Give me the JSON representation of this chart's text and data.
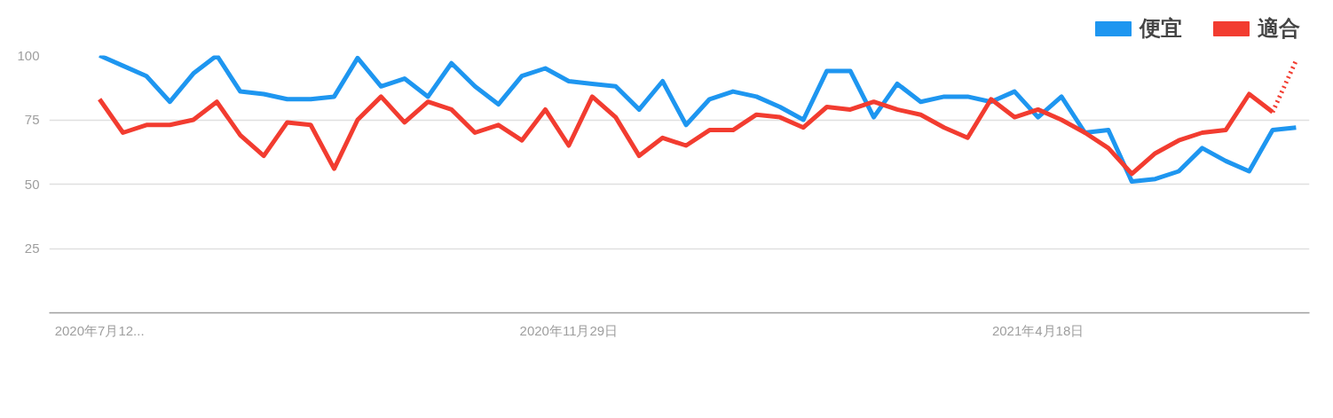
{
  "chart_data": {
    "type": "line",
    "x": [
      "2020-07-12",
      "2020-07-19",
      "2020-07-26",
      "2020-08-02",
      "2020-08-09",
      "2020-08-16",
      "2020-08-23",
      "2020-08-30",
      "2020-09-06",
      "2020-09-13",
      "2020-09-20",
      "2020-09-27",
      "2020-10-04",
      "2020-10-11",
      "2020-10-18",
      "2020-10-25",
      "2020-11-01",
      "2020-11-08",
      "2020-11-15",
      "2020-11-22",
      "2020-11-29",
      "2020-12-06",
      "2020-12-13",
      "2020-12-20",
      "2020-12-27",
      "2021-01-03",
      "2021-01-10",
      "2021-01-17",
      "2021-01-24",
      "2021-01-31",
      "2021-02-07",
      "2021-02-14",
      "2021-02-21",
      "2021-02-28",
      "2021-03-07",
      "2021-03-14",
      "2021-03-21",
      "2021-03-28",
      "2021-04-04",
      "2021-04-11",
      "2021-04-18",
      "2021-04-25",
      "2021-05-02",
      "2021-05-09",
      "2021-05-16",
      "2021-05-23",
      "2021-05-30",
      "2021-06-06",
      "2021-06-13",
      "2021-06-20",
      "2021-06-27",
      "2021-07-04"
    ],
    "series": [
      {
        "name": "便宜",
        "color": "#1e96f0",
        "values": [
          100,
          96,
          92,
          82,
          93,
          100,
          86,
          85,
          83,
          83,
          84,
          99,
          88,
          91,
          84,
          97,
          88,
          81,
          92,
          95,
          90,
          89,
          88,
          79,
          90,
          73,
          83,
          86,
          84,
          80,
          75,
          94,
          94,
          76,
          89,
          82,
          84,
          84,
          82,
          86,
          76,
          84,
          70,
          71,
          51,
          52,
          55,
          64,
          59,
          55,
          71,
          72
        ]
      },
      {
        "name": "適合",
        "color": "#f23c30",
        "values": [
          83,
          70,
          73,
          73,
          75,
          82,
          69,
          61,
          74,
          73,
          56,
          75,
          84,
          74,
          82,
          79,
          70,
          73,
          67,
          79,
          65,
          84,
          76,
          61,
          68,
          65,
          71,
          71,
          77,
          76,
          72,
          80,
          79,
          82,
          79,
          77,
          72,
          68,
          83,
          76,
          79,
          75,
          70,
          64,
          54,
          62,
          67,
          70,
          71,
          85,
          78,
          null
        ]
      },
      {
        "color": "#f23c30",
        "line_style": "dotted",
        "values": [
          null,
          null,
          null,
          null,
          null,
          null,
          null,
          null,
          null,
          null,
          null,
          null,
          null,
          null,
          null,
          null,
          null,
          null,
          null,
          null,
          null,
          null,
          null,
          null,
          null,
          null,
          null,
          null,
          null,
          null,
          null,
          null,
          null,
          null,
          null,
          null,
          null,
          null,
          null,
          null,
          null,
          null,
          null,
          null,
          null,
          null,
          null,
          null,
          null,
          null,
          78,
          98
        ]
      }
    ],
    "xlim": [
      "2020-06-27",
      "2021-07-08"
    ],
    "xticks": [
      {
        "value": "2020-07-12",
        "label": "2020年7月12..."
      },
      {
        "value": "2020-11-29",
        "label": "2020年11月29日"
      },
      {
        "value": "2021-04-18",
        "label": "2021年4月18日"
      }
    ],
    "ylim": [
      0,
      100
    ],
    "yticks": [
      25,
      50,
      75,
      100
    ],
    "grid": "y",
    "legend": "top right",
    "line_style": "solid",
    "marker": "none"
  }
}
